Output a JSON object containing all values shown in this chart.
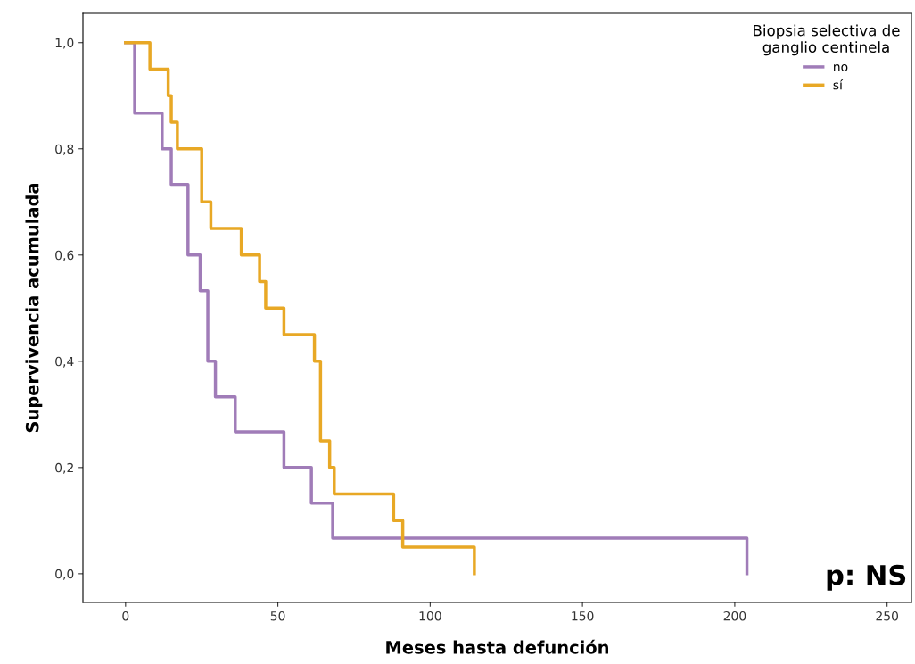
{
  "chart_data": {
    "type": "step",
    "xlabel": "Meses hasta defunción",
    "ylabel": "Supervivencia acumulada",
    "legend_title": "Biopsia selectiva de\nganglio centinela",
    "legend": "top right",
    "grid": false,
    "series": [
      {
        "name": "no",
        "color": "#a07cb8",
        "x": [
          0,
          3,
          12,
          15,
          20.5,
          24.5,
          27,
          29.5,
          36,
          52,
          61,
          68,
          204
        ],
        "values": [
          1,
          0.867,
          0.8,
          0.733,
          0.6,
          0.533,
          0.4,
          0.333,
          0.267,
          0.2,
          0.133,
          0.067,
          0
        ]
      },
      {
        "name": "sí",
        "color": "#e8a825",
        "x": [
          0,
          8,
          14,
          15,
          17,
          25,
          28,
          38,
          44,
          46,
          52,
          62,
          64,
          67,
          68.5,
          88,
          91,
          114.5
        ],
        "values": [
          1,
          0.95,
          0.9,
          0.85,
          0.8,
          0.7,
          0.65,
          0.6,
          0.55,
          0.5,
          0.45,
          0.4,
          0.25,
          0.2,
          0.15,
          0.1,
          0.05,
          0
        ]
      }
    ],
    "xlim": [
      -14,
      258
    ],
    "xticks": [
      0,
      50,
      100,
      150,
      200,
      250
    ],
    "ylim": [
      -0.054,
      1.055
    ],
    "yticks": [
      {
        "value": 0,
        "label": "0,0"
      },
      {
        "value": 0.2,
        "label": "0,2"
      },
      {
        "value": 0.4,
        "label": "0,4"
      },
      {
        "value": 0.6,
        "label": "0,6"
      },
      {
        "value": 0.8,
        "label": "0,8"
      },
      {
        "value": 1,
        "label": "1,0"
      }
    ],
    "annotations": [
      "p: NS"
    ]
  }
}
